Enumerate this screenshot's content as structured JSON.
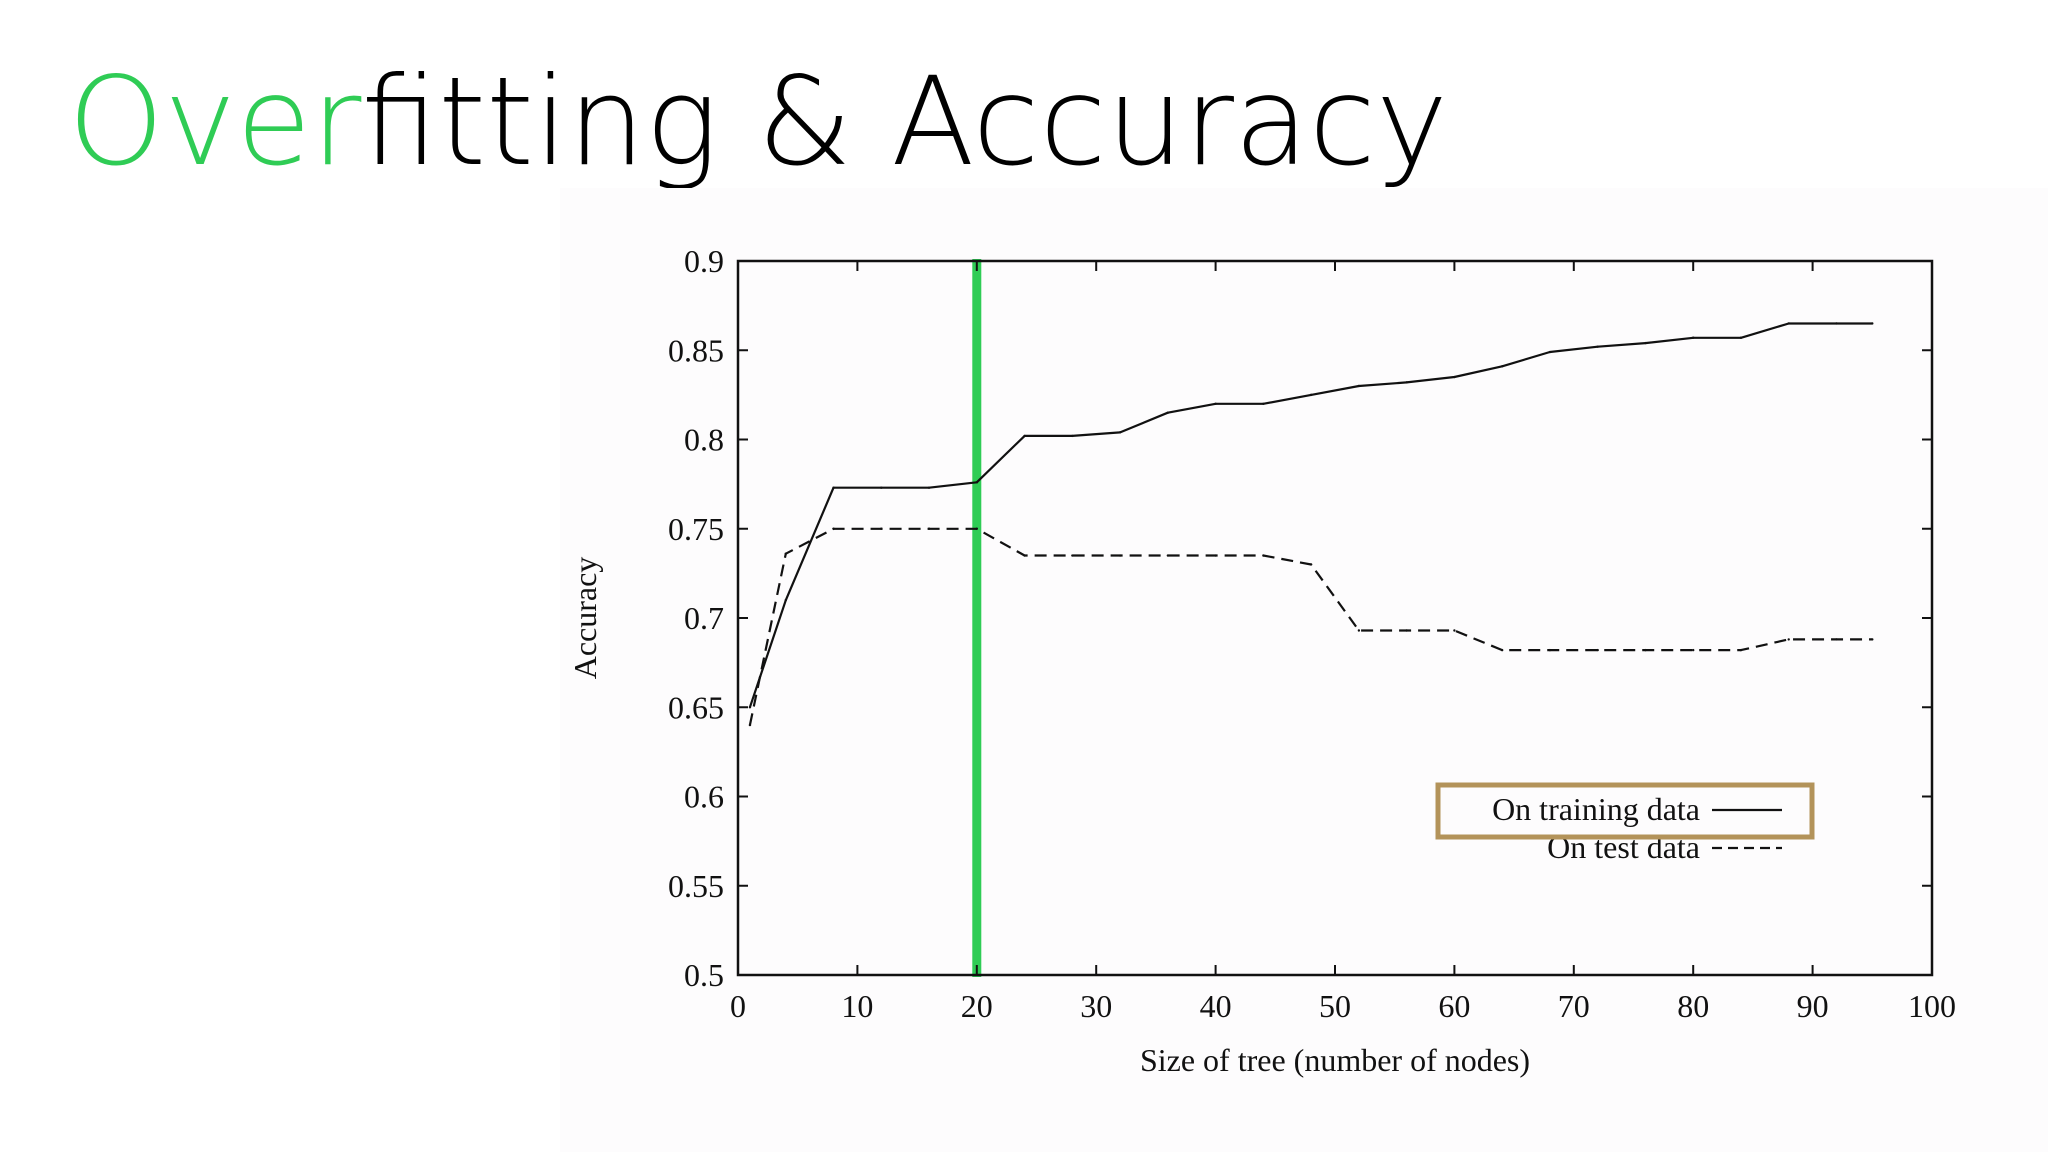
{
  "slide": {
    "title_accent": "Over",
    "title_rest": "fitting & Accuracy",
    "accent_color": "#2fcc55",
    "text_color": "#000000"
  },
  "chart_data": {
    "type": "line",
    "xlabel": "Size of tree (number of nodes)",
    "ylabel": "Accuracy",
    "xlim": [
      0,
      100
    ],
    "ylim": [
      0.5,
      0.9
    ],
    "x_ticks": [
      0,
      10,
      20,
      30,
      40,
      50,
      60,
      70,
      80,
      90,
      100
    ],
    "y_ticks": [
      0.5,
      0.55,
      0.6,
      0.65,
      0.7,
      0.75,
      0.8,
      0.85,
      0.9
    ],
    "x_tick_labels": [
      "0",
      "10",
      "20",
      "30",
      "40",
      "50",
      "60",
      "70",
      "80",
      "90",
      "100"
    ],
    "y_tick_labels": [
      "0.5",
      "0.55",
      "0.6",
      "0.65",
      "0.7",
      "0.75",
      "0.8",
      "0.85",
      "0.9"
    ],
    "grid": false,
    "legend_position": "bottom-right",
    "series": [
      {
        "name": "On training data",
        "style": "solid",
        "color": "#111111",
        "x": [
          1,
          4,
          8,
          12,
          16,
          20,
          24,
          28,
          32,
          36,
          40,
          44,
          48,
          52,
          56,
          60,
          64,
          68,
          72,
          76,
          80,
          84,
          88,
          92,
          95
        ],
        "y": [
          0.65,
          0.71,
          0.773,
          0.773,
          0.773,
          0.776,
          0.802,
          0.802,
          0.804,
          0.815,
          0.82,
          0.82,
          0.825,
          0.83,
          0.832,
          0.835,
          0.841,
          0.849,
          0.852,
          0.854,
          0.857,
          0.857,
          0.865,
          0.865,
          0.865
        ]
      },
      {
        "name": "On test data",
        "style": "dashed",
        "color": "#111111",
        "x": [
          1,
          4,
          8,
          12,
          16,
          20,
          24,
          28,
          32,
          36,
          40,
          44,
          48,
          52,
          56,
          60,
          64,
          68,
          72,
          76,
          80,
          84,
          88,
          92,
          95
        ],
        "y": [
          0.64,
          0.736,
          0.75,
          0.75,
          0.75,
          0.75,
          0.735,
          0.735,
          0.735,
          0.735,
          0.735,
          0.735,
          0.73,
          0.693,
          0.693,
          0.693,
          0.682,
          0.682,
          0.682,
          0.682,
          0.682,
          0.682,
          0.688,
          0.688,
          0.688
        ]
      }
    ],
    "annotations": [
      {
        "type": "vertical-line",
        "x": 20,
        "color": "#2fcc55"
      },
      {
        "type": "highlight-box",
        "target": "On training data",
        "color": "#b3935a"
      }
    ]
  }
}
